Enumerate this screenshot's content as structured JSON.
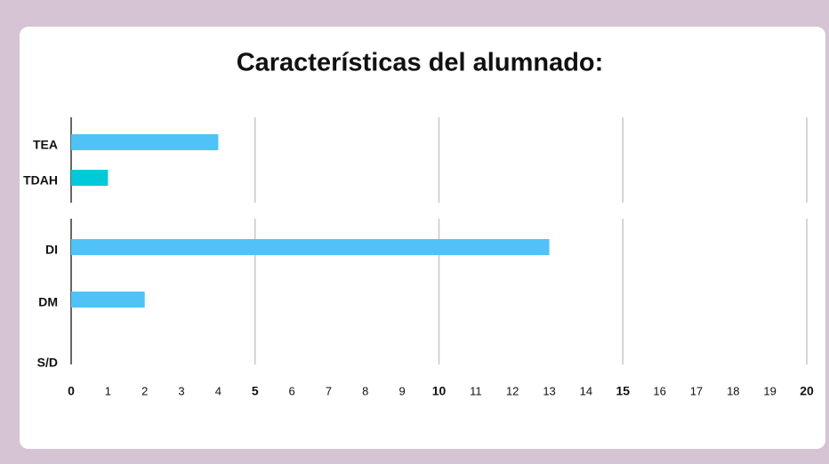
{
  "chart_data": {
    "type": "hbar",
    "title": "Características del alumnado:",
    "categories": [
      "TEA",
      "TDAH",
      "DI",
      "DM",
      "S/D"
    ],
    "values": [
      4,
      1,
      13,
      2,
      0
    ],
    "colors": [
      "#4fc3f7",
      "#00c9d9",
      "#4fc3f7",
      "#4fc3f7",
      "#4fc3f7"
    ],
    "xlim": [
      0,
      20
    ],
    "xticks": [
      0,
      1,
      2,
      3,
      4,
      5,
      6,
      7,
      8,
      9,
      10,
      11,
      12,
      13,
      14,
      15,
      16,
      17,
      18,
      19,
      20
    ],
    "grid": true
  }
}
